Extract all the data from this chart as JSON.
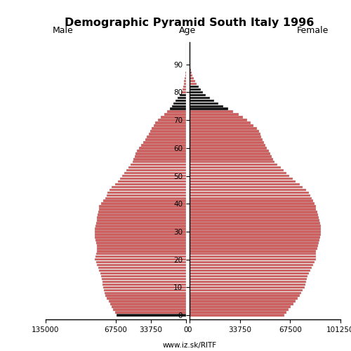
{
  "title": "Demographic Pyramid South Italy 1996",
  "label_male": "Male",
  "label_female": "Female",
  "label_age": "Age",
  "watermark": "www.iz.sk/RITF",
  "bar_color_main": "#cd5c5c",
  "bar_color_black": "#111111",
  "bar_color_salmon": "#d08080",
  "ages": [
    0,
    1,
    2,
    3,
    4,
    5,
    6,
    7,
    8,
    9,
    10,
    11,
    12,
    13,
    14,
    15,
    16,
    17,
    18,
    19,
    20,
    21,
    22,
    23,
    24,
    25,
    26,
    27,
    28,
    29,
    30,
    31,
    32,
    33,
    34,
    35,
    36,
    37,
    38,
    39,
    40,
    41,
    42,
    43,
    44,
    45,
    46,
    47,
    48,
    49,
    50,
    51,
    52,
    53,
    54,
    55,
    56,
    57,
    58,
    59,
    60,
    61,
    62,
    63,
    64,
    65,
    66,
    67,
    68,
    69,
    70,
    71,
    72,
    73,
    74,
    75,
    76,
    77,
    78,
    79,
    80,
    81,
    82,
    83,
    84,
    85,
    86,
    87,
    88,
    89,
    90,
    91,
    92,
    93,
    94,
    95,
    96,
    97
  ],
  "male": [
    67000,
    68500,
    70000,
    71500,
    73000,
    74500,
    76000,
    77500,
    78500,
    79000,
    79500,
    80000,
    80500,
    81000,
    81500,
    82500,
    83500,
    84500,
    85500,
    86500,
    87500,
    87000,
    86500,
    86000,
    85500,
    86000,
    86500,
    87000,
    87500,
    87500,
    87500,
    87500,
    87000,
    86500,
    86000,
    85500,
    85000,
    84500,
    84000,
    83500,
    81500,
    79500,
    77500,
    76500,
    75500,
    73500,
    71500,
    68500,
    65500,
    63500,
    61500,
    59500,
    57500,
    55500,
    53500,
    51500,
    50500,
    49500,
    48500,
    47000,
    45000,
    43000,
    41000,
    39000,
    37500,
    36000,
    34500,
    33000,
    31000,
    29500,
    27000,
    24000,
    21000,
    18000,
    15500,
    13500,
    12000,
    9800,
    7800,
    6200,
    4800,
    3700,
    2900,
    2200,
    1700,
    1200,
    800,
    500,
    300,
    170,
    90,
    50,
    25,
    12,
    6,
    3,
    1,
    1
  ],
  "female": [
    63500,
    65000,
    66500,
    68000,
    69500,
    71000,
    72500,
    74000,
    75000,
    76000,
    77000,
    77500,
    78000,
    78500,
    79000,
    80000,
    81000,
    82000,
    83000,
    84000,
    85000,
    85000,
    85000,
    85000,
    85500,
    86000,
    86500,
    87000,
    87500,
    88000,
    88000,
    88000,
    88000,
    87500,
    87000,
    86500,
    86000,
    85500,
    85000,
    85000,
    84000,
    83000,
    82000,
    81000,
    80000,
    78000,
    76000,
    74000,
    71000,
    69000,
    67000,
    65000,
    63000,
    61000,
    59000,
    57000,
    56000,
    55000,
    54000,
    53000,
    52000,
    51000,
    50000,
    49000,
    48000,
    47500,
    46500,
    45000,
    43000,
    41000,
    38500,
    36000,
    33000,
    29000,
    26000,
    22500,
    19500,
    16500,
    13500,
    11000,
    9000,
    7500,
    6000,
    4800,
    3600,
    2800,
    2100,
    1500,
    1000,
    600,
    300,
    170,
    90,
    45,
    20,
    8,
    3,
    1
  ],
  "black_ages_male": [
    0,
    74,
    75,
    76,
    77,
    78,
    79,
    93,
    94,
    95,
    96,
    97
  ],
  "black_ages_female": [
    74,
    75,
    76,
    77,
    78,
    79,
    80,
    81,
    82,
    93,
    94,
    95,
    96,
    97
  ],
  "xlim": 135000,
  "xlim_right": 101250,
  "ytick_positions": [
    0,
    10,
    20,
    30,
    40,
    50,
    60,
    70,
    80,
    90
  ],
  "xticks_left_labels": [
    "135000",
    "67500",
    "33750",
    "0"
  ],
  "xticks_left_vals": [
    135000,
    67500,
    33750,
    0
  ],
  "xticks_right_labels": [
    "0",
    "33750",
    "67500",
    "101250"
  ],
  "xticks_right_vals": [
    0,
    33750,
    67500,
    101250
  ]
}
